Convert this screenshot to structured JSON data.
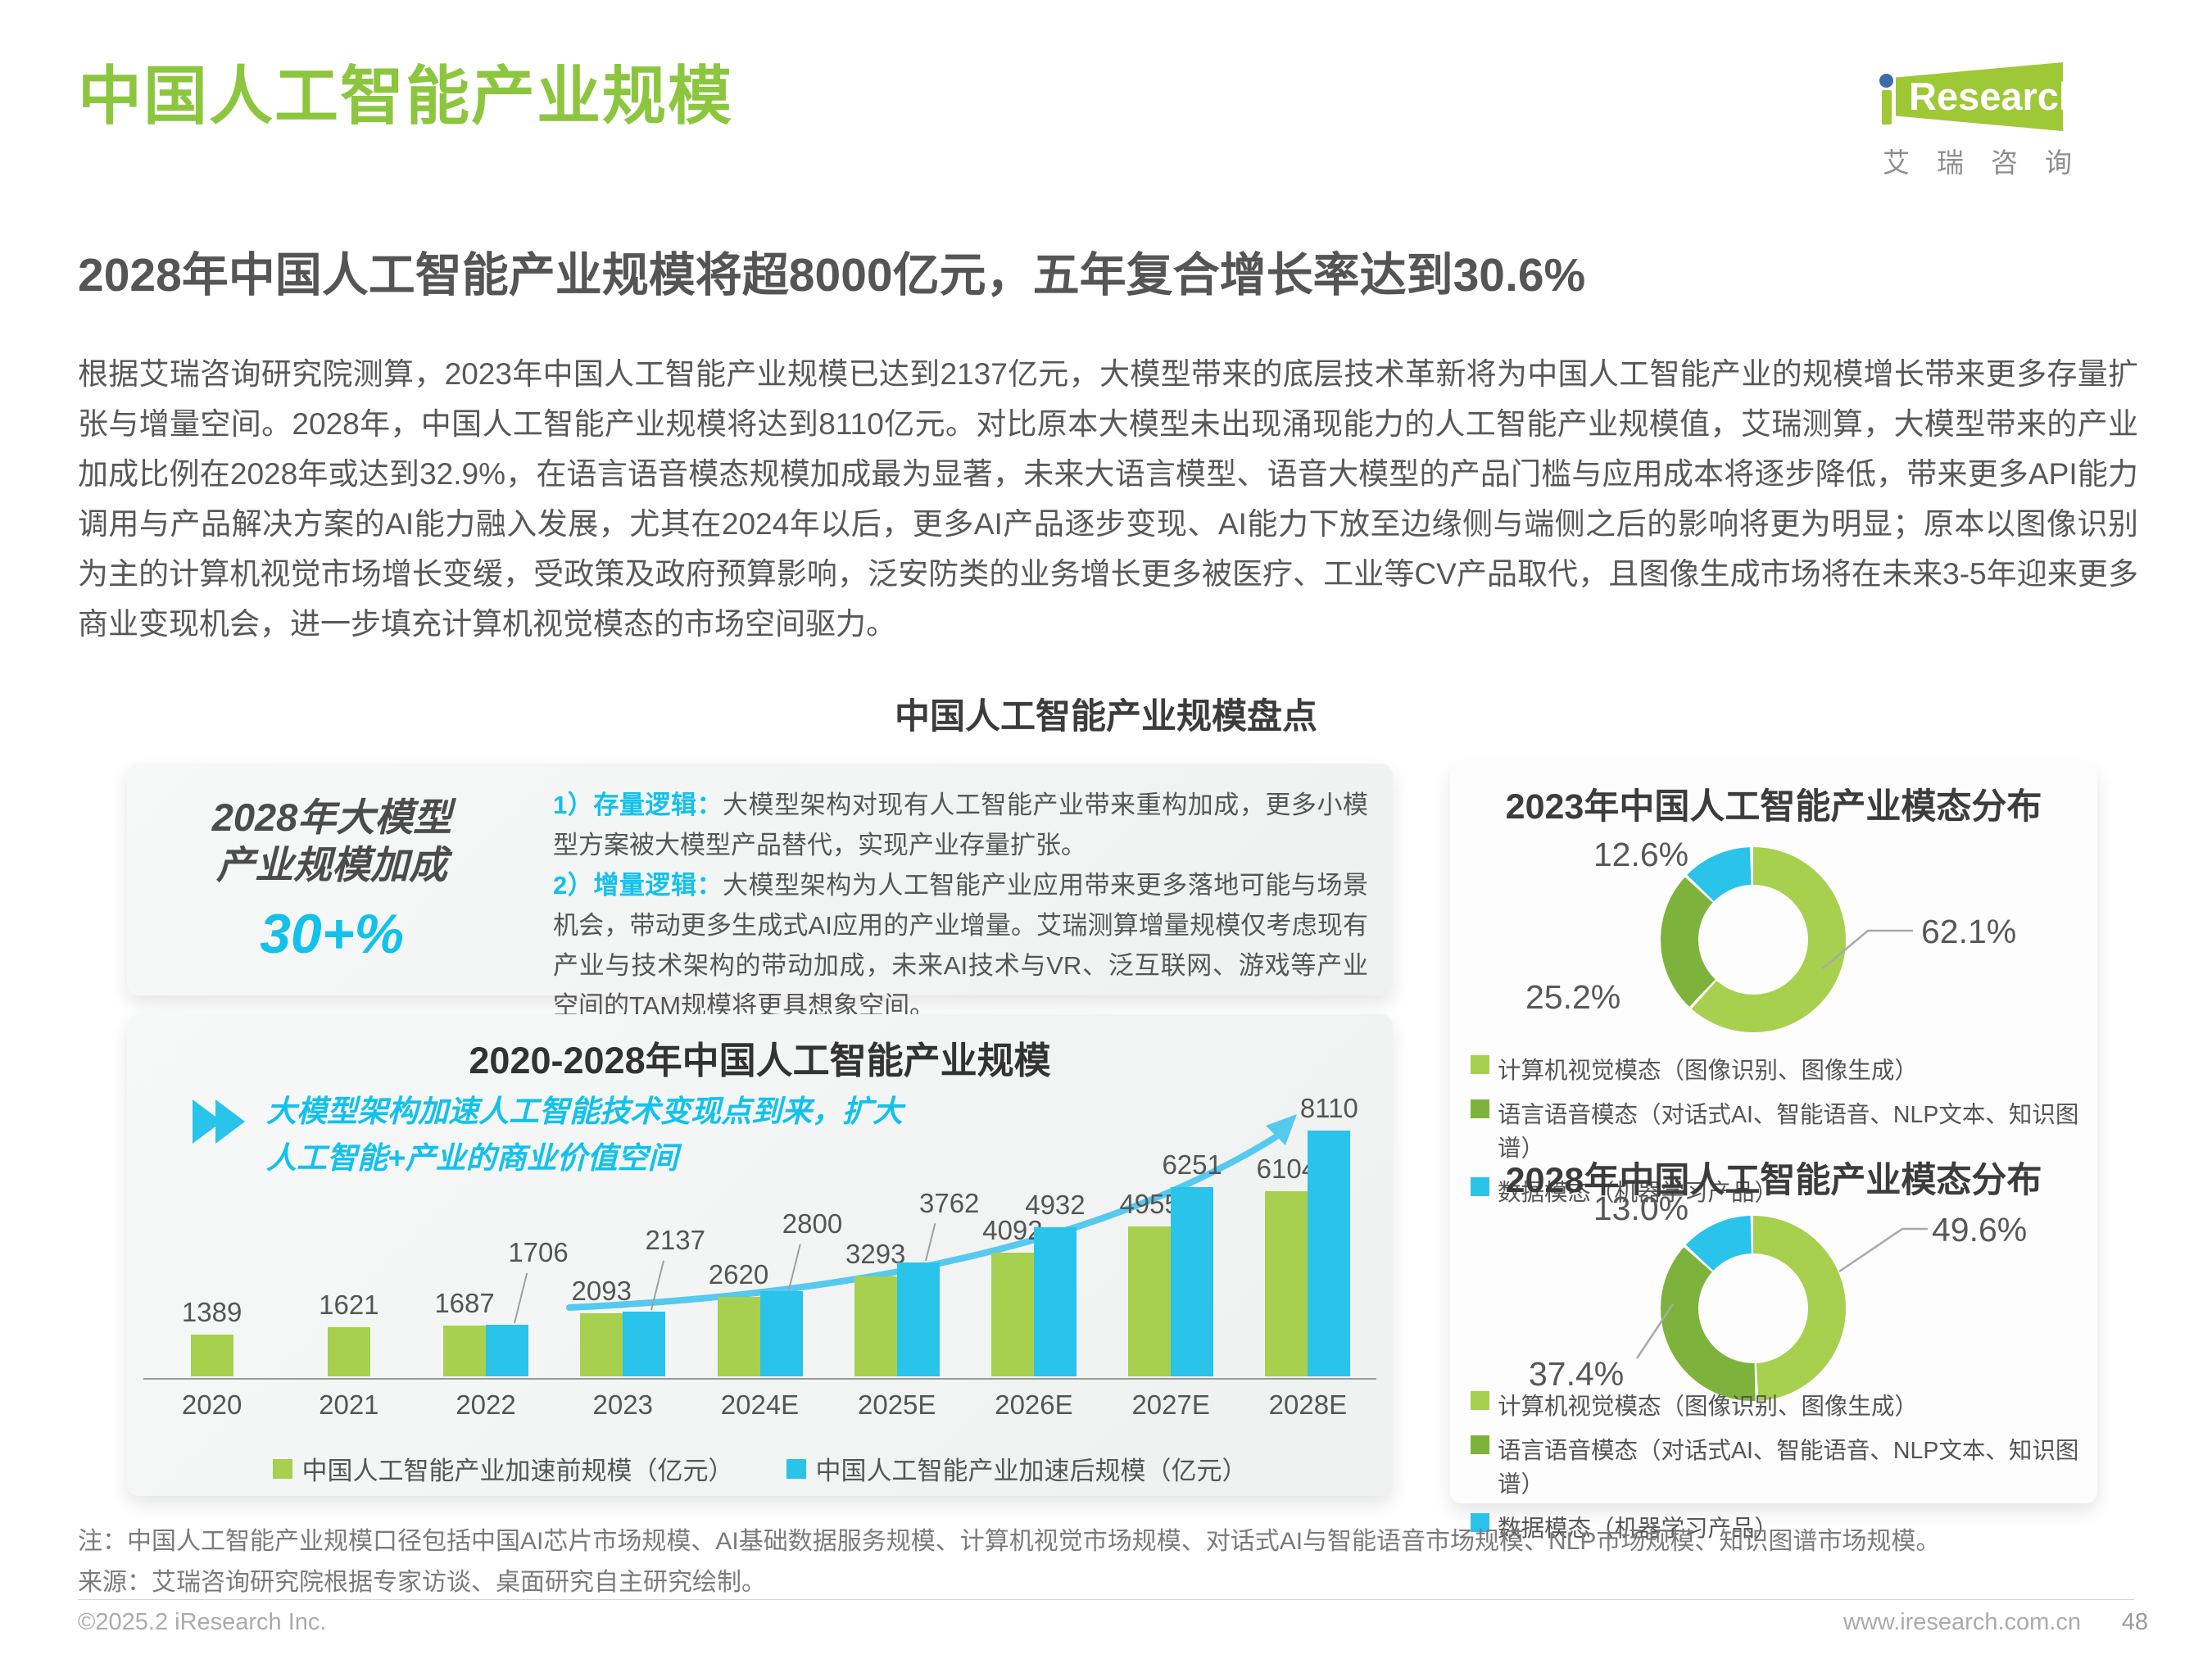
{
  "accent": {
    "cyan": "#12c1ec",
    "green_title": "#8cc63f",
    "bar_green": "#a7d04e",
    "bar_blue": "#2ac3ea",
    "dark_green": "#7db33c"
  },
  "page": {
    "title": "中国人工智能产业规模",
    "subtitle": "2028年中国人工智能产业规模将超8000亿元，五年复合增长率达到30.6%",
    "body": "根据艾瑞咨询研究院测算，2023年中国人工智能产业规模已达到2137亿元，大模型带来的底层技术革新将为中国人工智能产业的规模增长带来更多存量扩张与增量空间。2028年，中国人工智能产业规模将达到8110亿元。对比原本大模型未出现涌现能力的人工智能产业规模值，艾瑞测算，大模型带来的产业加成比例在2028年或达到32.9%，在语言语音模态规模加成最为显著，未来大语言模型、语音大模型的产品门槛与应用成本将逐步降低，带来更多API能力调用与产品解决方案的AI能力融入发展，尤其在2024年以后，更多AI产品逐步变现、AI能力下放至边缘侧与端侧之后的影响将更为明显；原本以图像识别为主的计算机视觉市场增长变缓，受政策及政府预算影响，泛安防类的业务增长更多被医疗、工业等CV产品取代，且图像生成市场将在未来3-5年迎来更多商业变现机会，进一步填充计算机视觉模态的市场空间驱力。",
    "section_title": "中国人工智能产业规模盘点"
  },
  "logo": {
    "brand": "Research",
    "cn": "艾瑞咨询"
  },
  "highlight_card": {
    "title_line1": "2028年大模型",
    "title_line2": "产业规模加成",
    "value": "30+%",
    "items": [
      {
        "label": "1）存量逻辑：",
        "text": "大模型架构对现有人工智能产业带来重构加成，更多小模型方案被大模型产品替代，实现产业存量扩张。"
      },
      {
        "label": "2）增量逻辑：",
        "text": "大模型架构为人工智能产业应用带来更多落地可能与场景机会，带动更多生成式AI应用的产业增量。艾瑞测算增量规模仅考虑现有产业与技术架构的带动加成，未来AI技术与VR、泛互联网、游戏等产业空间的TAM规模将更具想象空间。"
      }
    ]
  },
  "chart_data": [
    {
      "type": "bar",
      "title": "2020-2028年中国人工智能产业规模",
      "annotation_lines": [
        "大模型架构加速人工智能技术变现点到来，扩大",
        "人工智能+产业的商业价值空间"
      ],
      "categories": [
        "2020",
        "2021",
        "2022",
        "2023",
        "2024E",
        "2025E",
        "2026E",
        "2027E",
        "2028E"
      ],
      "series": [
        {
          "name": "中国人工智能产业加速前规模（亿元）",
          "color": "#a7d04e",
          "values": [
            1389,
            1621,
            1687,
            2093,
            2620,
            3293,
            4092,
            4955,
            6104
          ]
        },
        {
          "name": "中国人工智能产业加速后规模（亿元）",
          "color": "#2ac3ea",
          "values": [
            null,
            null,
            1706,
            2137,
            2800,
            3762,
            4932,
            6251,
            8110
          ]
        }
      ],
      "ylim": [
        0,
        8110
      ],
      "grid": false,
      "legend_position": "bottom"
    },
    {
      "type": "pie",
      "title": "2023年中国人工智能产业模态分布",
      "labels": [
        "计算机视觉模态（图像识别、图像生成）",
        "语言语音模态（对话式AI、智能语音、NLP文本、知识图谱）",
        "数据模态（机器学习产品）"
      ],
      "values": [
        62.1,
        25.2,
        12.6
      ],
      "colors": [
        "#a7d04e",
        "#7db33c",
        "#2ac3ea"
      ],
      "unit": "%",
      "donut": true
    },
    {
      "type": "pie",
      "title": "2028年中国人工智能产业模态分布",
      "labels": [
        "计算机视觉模态（图像识别、图像生成）",
        "语言语音模态（对话式AI、智能语音、NLP文本、知识图谱）",
        "数据模态（机器学习产品）"
      ],
      "values": [
        49.6,
        37.4,
        13.0
      ],
      "colors": [
        "#a7d04e",
        "#7db33c",
        "#2ac3ea"
      ],
      "unit": "%",
      "donut": true
    }
  ],
  "notes": {
    "note": "注：中国人工智能产业规模口径包括中国AI芯片市场规模、AI基础数据服务规模、计算机视觉市场规模、对话式AI与智能语音市场规模、NLP市场规模、知识图谱市场规模。",
    "source": "来源：艾瑞咨询研究院根据专家访谈、桌面研究自主研究绘制。"
  },
  "footer": {
    "copyright": "©2025.2 iResearch Inc.",
    "site": "www.iresearch.com.cn",
    "page": "48"
  }
}
